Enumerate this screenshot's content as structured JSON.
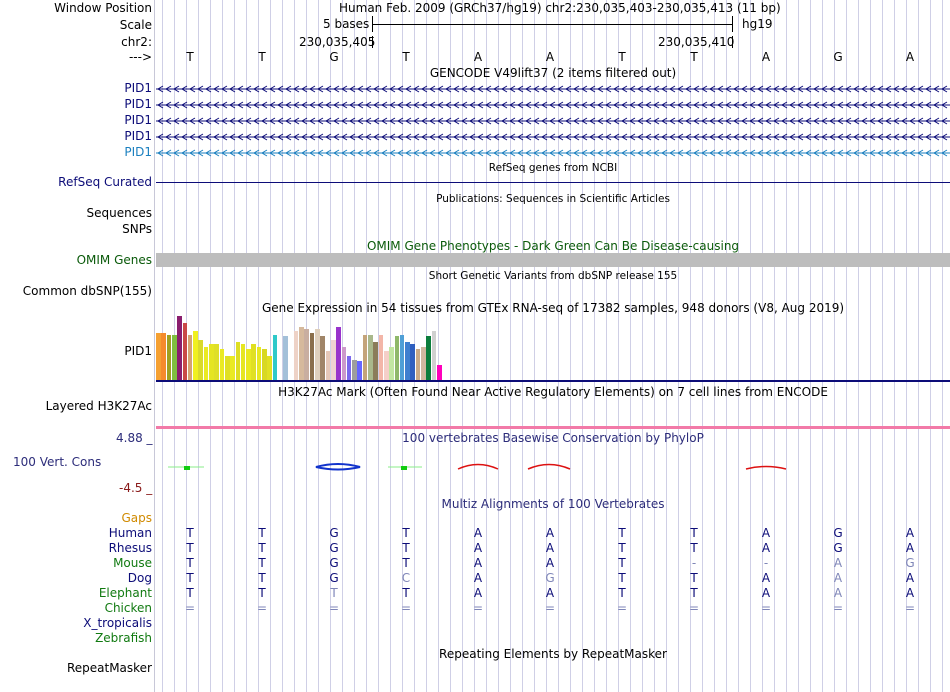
{
  "header": {
    "window_position_label": "Window Position",
    "scale_label": "Scale",
    "chrom_label": "chr2:",
    "arrow_label": "--->",
    "assembly_text": "Human Feb. 2009 (GRCh37/hg19)   chr2:230,035,403-230,035,413 (11 bp)",
    "scale_text": "5 bases",
    "db_label": "hg19",
    "coord_left": "230,035,405",
    "coord_right": "230,035,410"
  },
  "sequence": [
    "T",
    "T",
    "G",
    "T",
    "A",
    "A",
    "T",
    "T",
    "A",
    "G",
    "A"
  ],
  "gencode": {
    "title": "GENCODE V49lift37 (2 items filtered out)",
    "genes": [
      {
        "label": "PID1",
        "color": "#0c0c78"
      },
      {
        "label": "PID1",
        "color": "#0c0c78"
      },
      {
        "label": "PID1",
        "color": "#0c0c78"
      },
      {
        "label": "PID1",
        "color": "#0c0c78"
      },
      {
        "label": "PID1",
        "color": "#1a7fbf"
      }
    ]
  },
  "refseq": {
    "title": "RefSeq genes from NCBI",
    "label": "RefSeq Curated"
  },
  "publications": {
    "title": "Publications: Sequences in Scientific Articles",
    "label": "Sequences"
  },
  "snps_label": "SNPs",
  "omim": {
    "title": "OMIM Gene Phenotypes - Dark Green Can Be Disease-causing",
    "label": "OMIM Genes"
  },
  "dbsnp": {
    "title": "Short Genetic Variants from dbSNP release 155",
    "label": "Common dbSNP(155)"
  },
  "gtex": {
    "title": "Gene Expression in 54 tissues from GTEx RNA-seq of 17382 samples, 948 donors (V8, Aug 2019)",
    "label": "PID1",
    "bar_heights": [
      0.74,
      0.74,
      0.71,
      0.71,
      1.0,
      0.89,
      0.71,
      0.77,
      0.63,
      0.51,
      0.57,
      0.57,
      0.49,
      0.37,
      0.37,
      0.6,
      0.57,
      0.49,
      0.57,
      0.51,
      0.49,
      0.37,
      0.71,
      0.0,
      0.69,
      0.0,
      0.77,
      0.83,
      0.8,
      0.74,
      0.8,
      0.69,
      0.46,
      0.63,
      0.83,
      0.51,
      0.37,
      0.31,
      0.29,
      0.71,
      0.71,
      0.6,
      0.71,
      0.46,
      0.51,
      0.69,
      0.71,
      0.6,
      0.57,
      0.49,
      0.51,
      0.69,
      0.77,
      0.23
    ],
    "bar_colors": [
      "#f5a031",
      "#f58b2b",
      "#a0a020",
      "#7fbf3f",
      "#8a1d6e",
      "#c94848",
      "#d4a374",
      "#f0f020",
      "#dada2a",
      "#eaea22",
      "#e5e522",
      "#dfdf28",
      "#eaea22",
      "#e0e022",
      "#eaea22",
      "#dede22",
      "#e6e622",
      "#e9e922",
      "#e0e022",
      "#e8e822",
      "#d8d822",
      "#e0e022",
      "#2ec9c9",
      "#ffffff",
      "#a3c0d9",
      "#ffffff",
      "#eed2c6",
      "#d6b99c",
      "#c9aea0",
      "#8a6e4b",
      "#dfcfbc",
      "#a08568",
      "#e6c8b8",
      "#f0d2d2",
      "#9933cc",
      "#cc99cc",
      "#7b68ee",
      "#9e9e9e",
      "#6666ff",
      "#c4a47a",
      "#a9b88c",
      "#8a7c5a",
      "#f3b6a8",
      "#f5cfc8",
      "#c2e6a2",
      "#8fb86a",
      "#4f9fd6",
      "#3f7fcf",
      "#2f5fbf",
      "#c8aa88",
      "#d0b8a0",
      "#0b7d3c",
      "#d0d0d0",
      "#ff00bb"
    ]
  },
  "h3k27ac": {
    "title": "H3K27Ac Mark (Often Found Near Active Regulatory Elements) on 7 cell lines from ENCODE",
    "label": "Layered H3K27Ac"
  },
  "conservation": {
    "title": "100 vertebrates Basewise Conservation by PhyloP",
    "label": "100 Vert. Cons",
    "max_label": "4.88 _",
    "min_label": "-4.5 _"
  },
  "multiz": {
    "title": "Multiz Alignments of 100 Vertebrates",
    "gaps_label": "Gaps",
    "species": [
      {
        "name": "Human",
        "color": "#0c0c78",
        "bases": [
          "T",
          "T",
          "G",
          "T",
          "A",
          "A",
          "T",
          "T",
          "A",
          "G",
          "A"
        ],
        "dim": [
          false,
          false,
          false,
          false,
          false,
          false,
          false,
          false,
          false,
          false,
          false
        ]
      },
      {
        "name": "Rhesus",
        "color": "#0c0c78",
        "bases": [
          "T",
          "T",
          "G",
          "T",
          "A",
          "A",
          "T",
          "T",
          "A",
          "G",
          "A"
        ],
        "dim": [
          false,
          false,
          false,
          false,
          false,
          false,
          false,
          false,
          false,
          false,
          false
        ]
      },
      {
        "name": "Mouse",
        "color": "#117a11",
        "bases": [
          "T",
          "T",
          "G",
          "T",
          "A",
          "A",
          "T",
          "-",
          "-",
          "A",
          "G"
        ],
        "dim": [
          false,
          false,
          false,
          false,
          false,
          false,
          false,
          true,
          true,
          true,
          true
        ]
      },
      {
        "name": "Dog",
        "color": "#0c0c78",
        "bases": [
          "T",
          "T",
          "G",
          "C",
          "A",
          "G",
          "T",
          "T",
          "A",
          "A",
          "A"
        ],
        "dim": [
          false,
          false,
          false,
          true,
          false,
          true,
          false,
          false,
          false,
          true,
          false
        ]
      },
      {
        "name": "Elephant",
        "color": "#117a11",
        "bases": [
          "T",
          "T",
          "T",
          "T",
          "A",
          "A",
          "T",
          "T",
          "A",
          "A",
          "A"
        ],
        "dim": [
          false,
          false,
          true,
          false,
          false,
          false,
          false,
          false,
          false,
          true,
          false
        ]
      },
      {
        "name": "Chicken",
        "color": "#117a11",
        "bases": [
          "=",
          "=",
          "=",
          "=",
          "=",
          "=",
          "=",
          "=",
          "=",
          "=",
          "="
        ],
        "dim": [
          true,
          true,
          true,
          true,
          true,
          true,
          true,
          true,
          true,
          true,
          true
        ]
      },
      {
        "name": "X_tropicalis",
        "color": "#0c0c78",
        "bases": [
          "",
          "",
          "",
          "",
          "",
          "",
          "",
          "",
          "",
          "",
          ""
        ],
        "dim": [
          false,
          false,
          false,
          false,
          false,
          false,
          false,
          false,
          false,
          false,
          false
        ]
      },
      {
        "name": "Zebrafish",
        "color": "#117a11",
        "bases": [
          "",
          "",
          "",
          "",
          "",
          "",
          "",
          "",
          "",
          "",
          ""
        ],
        "dim": [
          false,
          false,
          false,
          false,
          false,
          false,
          false,
          false,
          false,
          false,
          false
        ]
      }
    ]
  },
  "repeatmasker": {
    "title": "Repeating Elements by RepeatMasker",
    "label": "RepeatMasker"
  },
  "colors": {
    "label_blue": "#0c0c78",
    "omim_green": "#0a5a0a",
    "gaps_orange": "#d08a00",
    "cons_blue": "#2c2c7a",
    "cons_red": "#8a1a1a",
    "pink_line": "#f27aa8",
    "grid": "#cfcfe6"
  }
}
